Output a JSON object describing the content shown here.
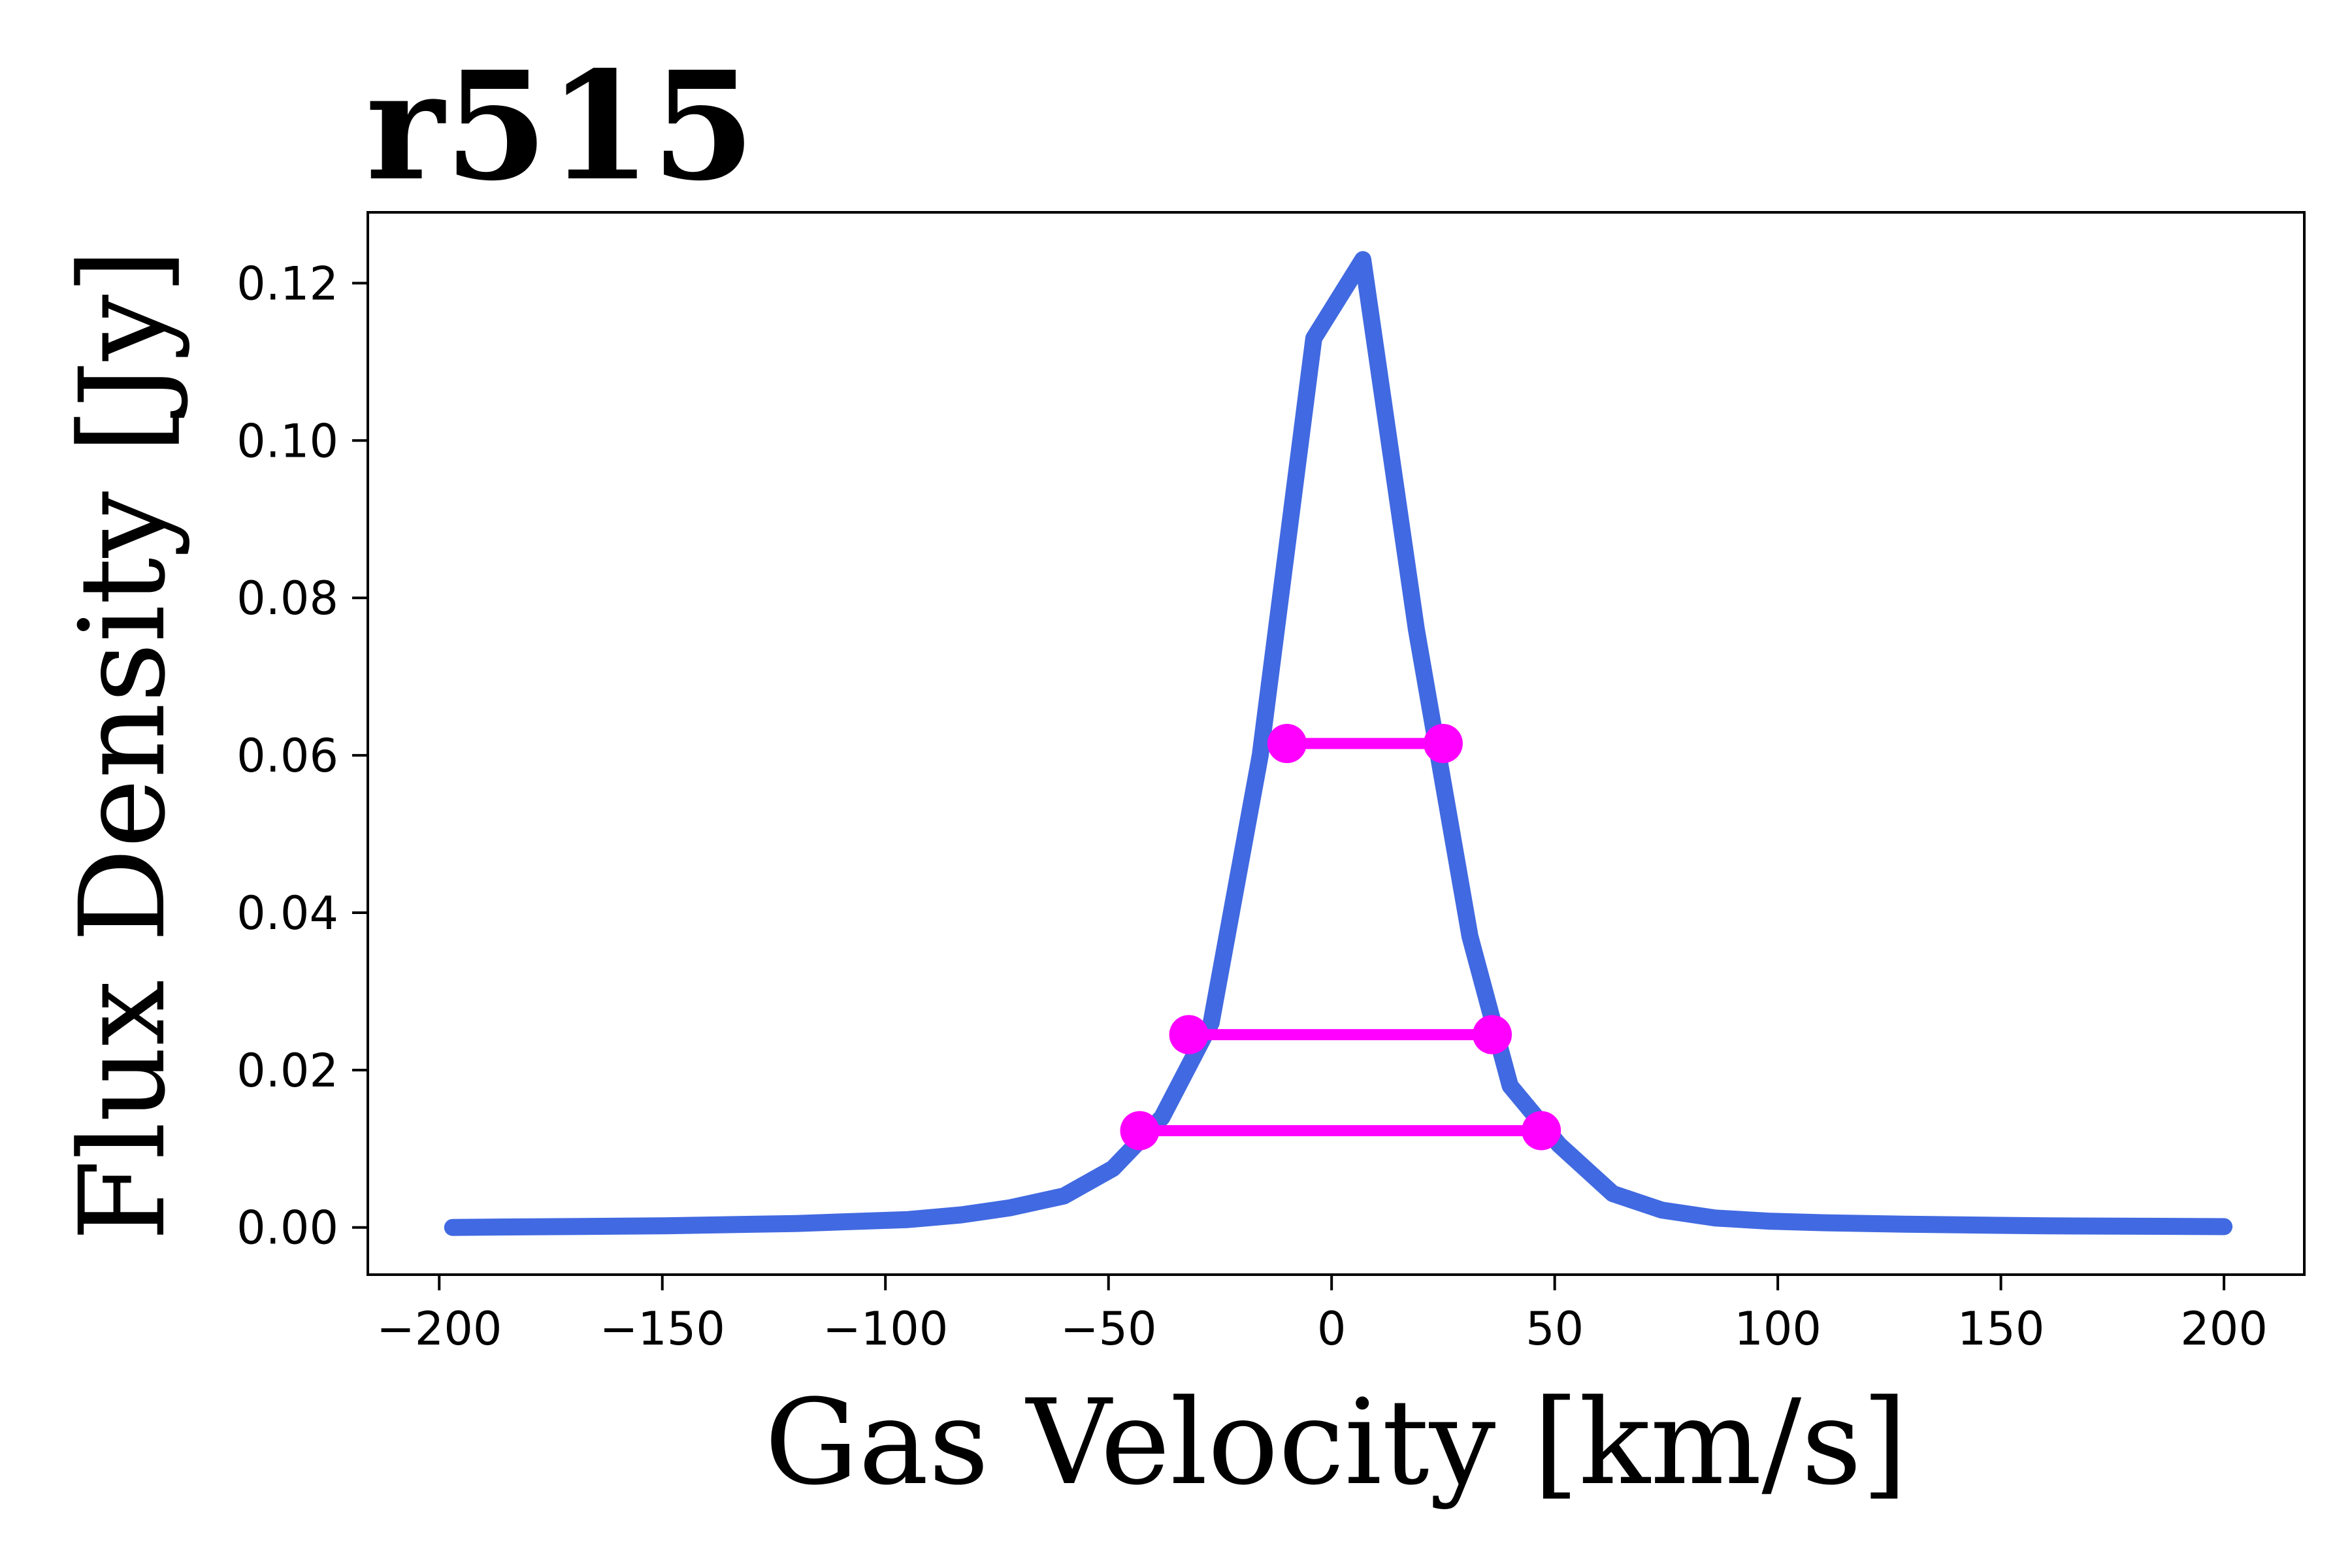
{
  "chart_data": {
    "type": "line",
    "title": "r515",
    "xlabel": "Gas Velocity [km/s]",
    "ylabel": "Flux Density [Jy]",
    "xlim": [
      -216,
      218
    ],
    "ylim": [
      -0.006,
      0.129
    ],
    "xticks": [
      -200,
      -150,
      -100,
      -50,
      0,
      50,
      100,
      150,
      200
    ],
    "xtick_labels": [
      "−200",
      "−150",
      "−100",
      "−50",
      "0",
      "50",
      "100",
      "150",
      "200"
    ],
    "yticks": [
      0.0,
      0.02,
      0.04,
      0.06,
      0.08,
      0.1,
      0.12
    ],
    "ytick_labels": [
      "0.00",
      "0.02",
      "0.04",
      "0.06",
      "0.08",
      "0.10",
      "0.12"
    ],
    "grid": false,
    "series": [
      {
        "color": "#4169e1",
        "x": [
          -197,
          -150,
          -120,
          -95,
          -83,
          -72,
          -60,
          -49,
          -38,
          -27,
          -16,
          -4,
          7,
          19,
          31,
          40,
          51,
          63,
          74,
          86,
          98,
          110,
          130,
          160,
          200
        ],
        "y": [
          0.0,
          0.0002,
          0.0005,
          0.001,
          0.0016,
          0.0025,
          0.004,
          0.0075,
          0.014,
          0.026,
          0.06,
          0.113,
          0.123,
          0.076,
          0.037,
          0.018,
          0.0105,
          0.0043,
          0.0022,
          0.0012,
          0.0008,
          0.0006,
          0.0004,
          0.0002,
          0.0001
        ]
      }
    ],
    "widths": [
      {
        "color": "#ff00ff",
        "x1": -10,
        "x2": 25,
        "y": 0.0615
      },
      {
        "color": "#ff00ff",
        "x1": -32,
        "x2": 36,
        "y": 0.0245
      },
      {
        "color": "#ff00ff",
        "x1": -43,
        "x2": 47,
        "y": 0.0123
      }
    ]
  }
}
